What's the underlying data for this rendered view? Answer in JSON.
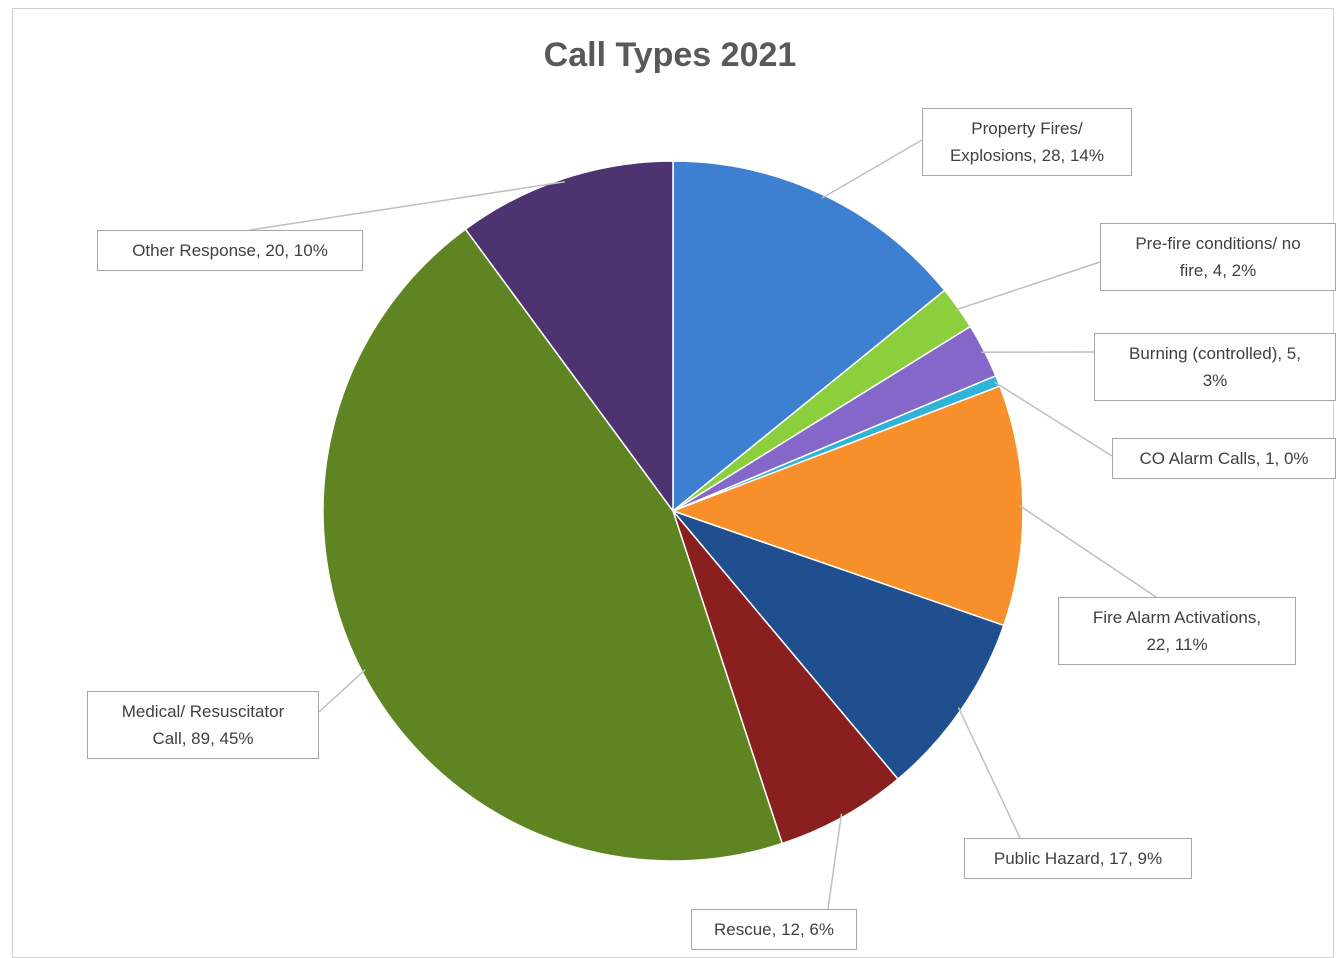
{
  "chart_data": {
    "type": "pie",
    "title": "Call Types 2021",
    "start_angle_deg": 0,
    "direction": "clockwise",
    "slices": [
      {
        "name": "Property Fires/ Explosions",
        "value": 28,
        "percent": 14,
        "color": "#3d7fd1",
        "label_lines": [
          "Property Fires/",
          "Explosions, 28, 14%"
        ]
      },
      {
        "name": "Pre-fire conditions/ no fire",
        "value": 4,
        "percent": 2,
        "color": "#8ccf3c",
        "label_lines": [
          "Pre-fire conditions/ no",
          "fire, 4, 2%"
        ]
      },
      {
        "name": "Burning (controlled)",
        "value": 5,
        "percent": 3,
        "color": "#8566c9",
        "label_lines": [
          "Burning (controlled), 5,",
          "3%"
        ]
      },
      {
        "name": "CO Alarm Calls",
        "value": 1,
        "percent": 0,
        "color": "#2eb4d6",
        "label_lines": [
          "CO Alarm Calls, 1, 0%"
        ]
      },
      {
        "name": "Fire Alarm Activations",
        "value": 22,
        "percent": 11,
        "color": "#f7902a",
        "label_lines": [
          "Fire Alarm Activations,",
          "22, 11%"
        ]
      },
      {
        "name": "Public Hazard",
        "value": 17,
        "percent": 9,
        "color": "#1f4f8f",
        "label_lines": [
          "Public Hazard, 17, 9%"
        ]
      },
      {
        "name": "Rescue",
        "value": 12,
        "percent": 6,
        "color": "#8a1f1f",
        "label_lines": [
          "Rescue, 12, 6%"
        ]
      },
      {
        "name": "Medical/ Resuscitator Call",
        "value": 89,
        "percent": 45,
        "color": "#5f8523",
        "label_lines": [
          "Medical/ Resuscitator",
          "Call, 89, 45%"
        ]
      },
      {
        "name": "Other Response",
        "value": 20,
        "percent": 10,
        "color": "#4d3470",
        "label_lines": [
          "Other Response, 20, 10%"
        ]
      }
    ]
  }
}
